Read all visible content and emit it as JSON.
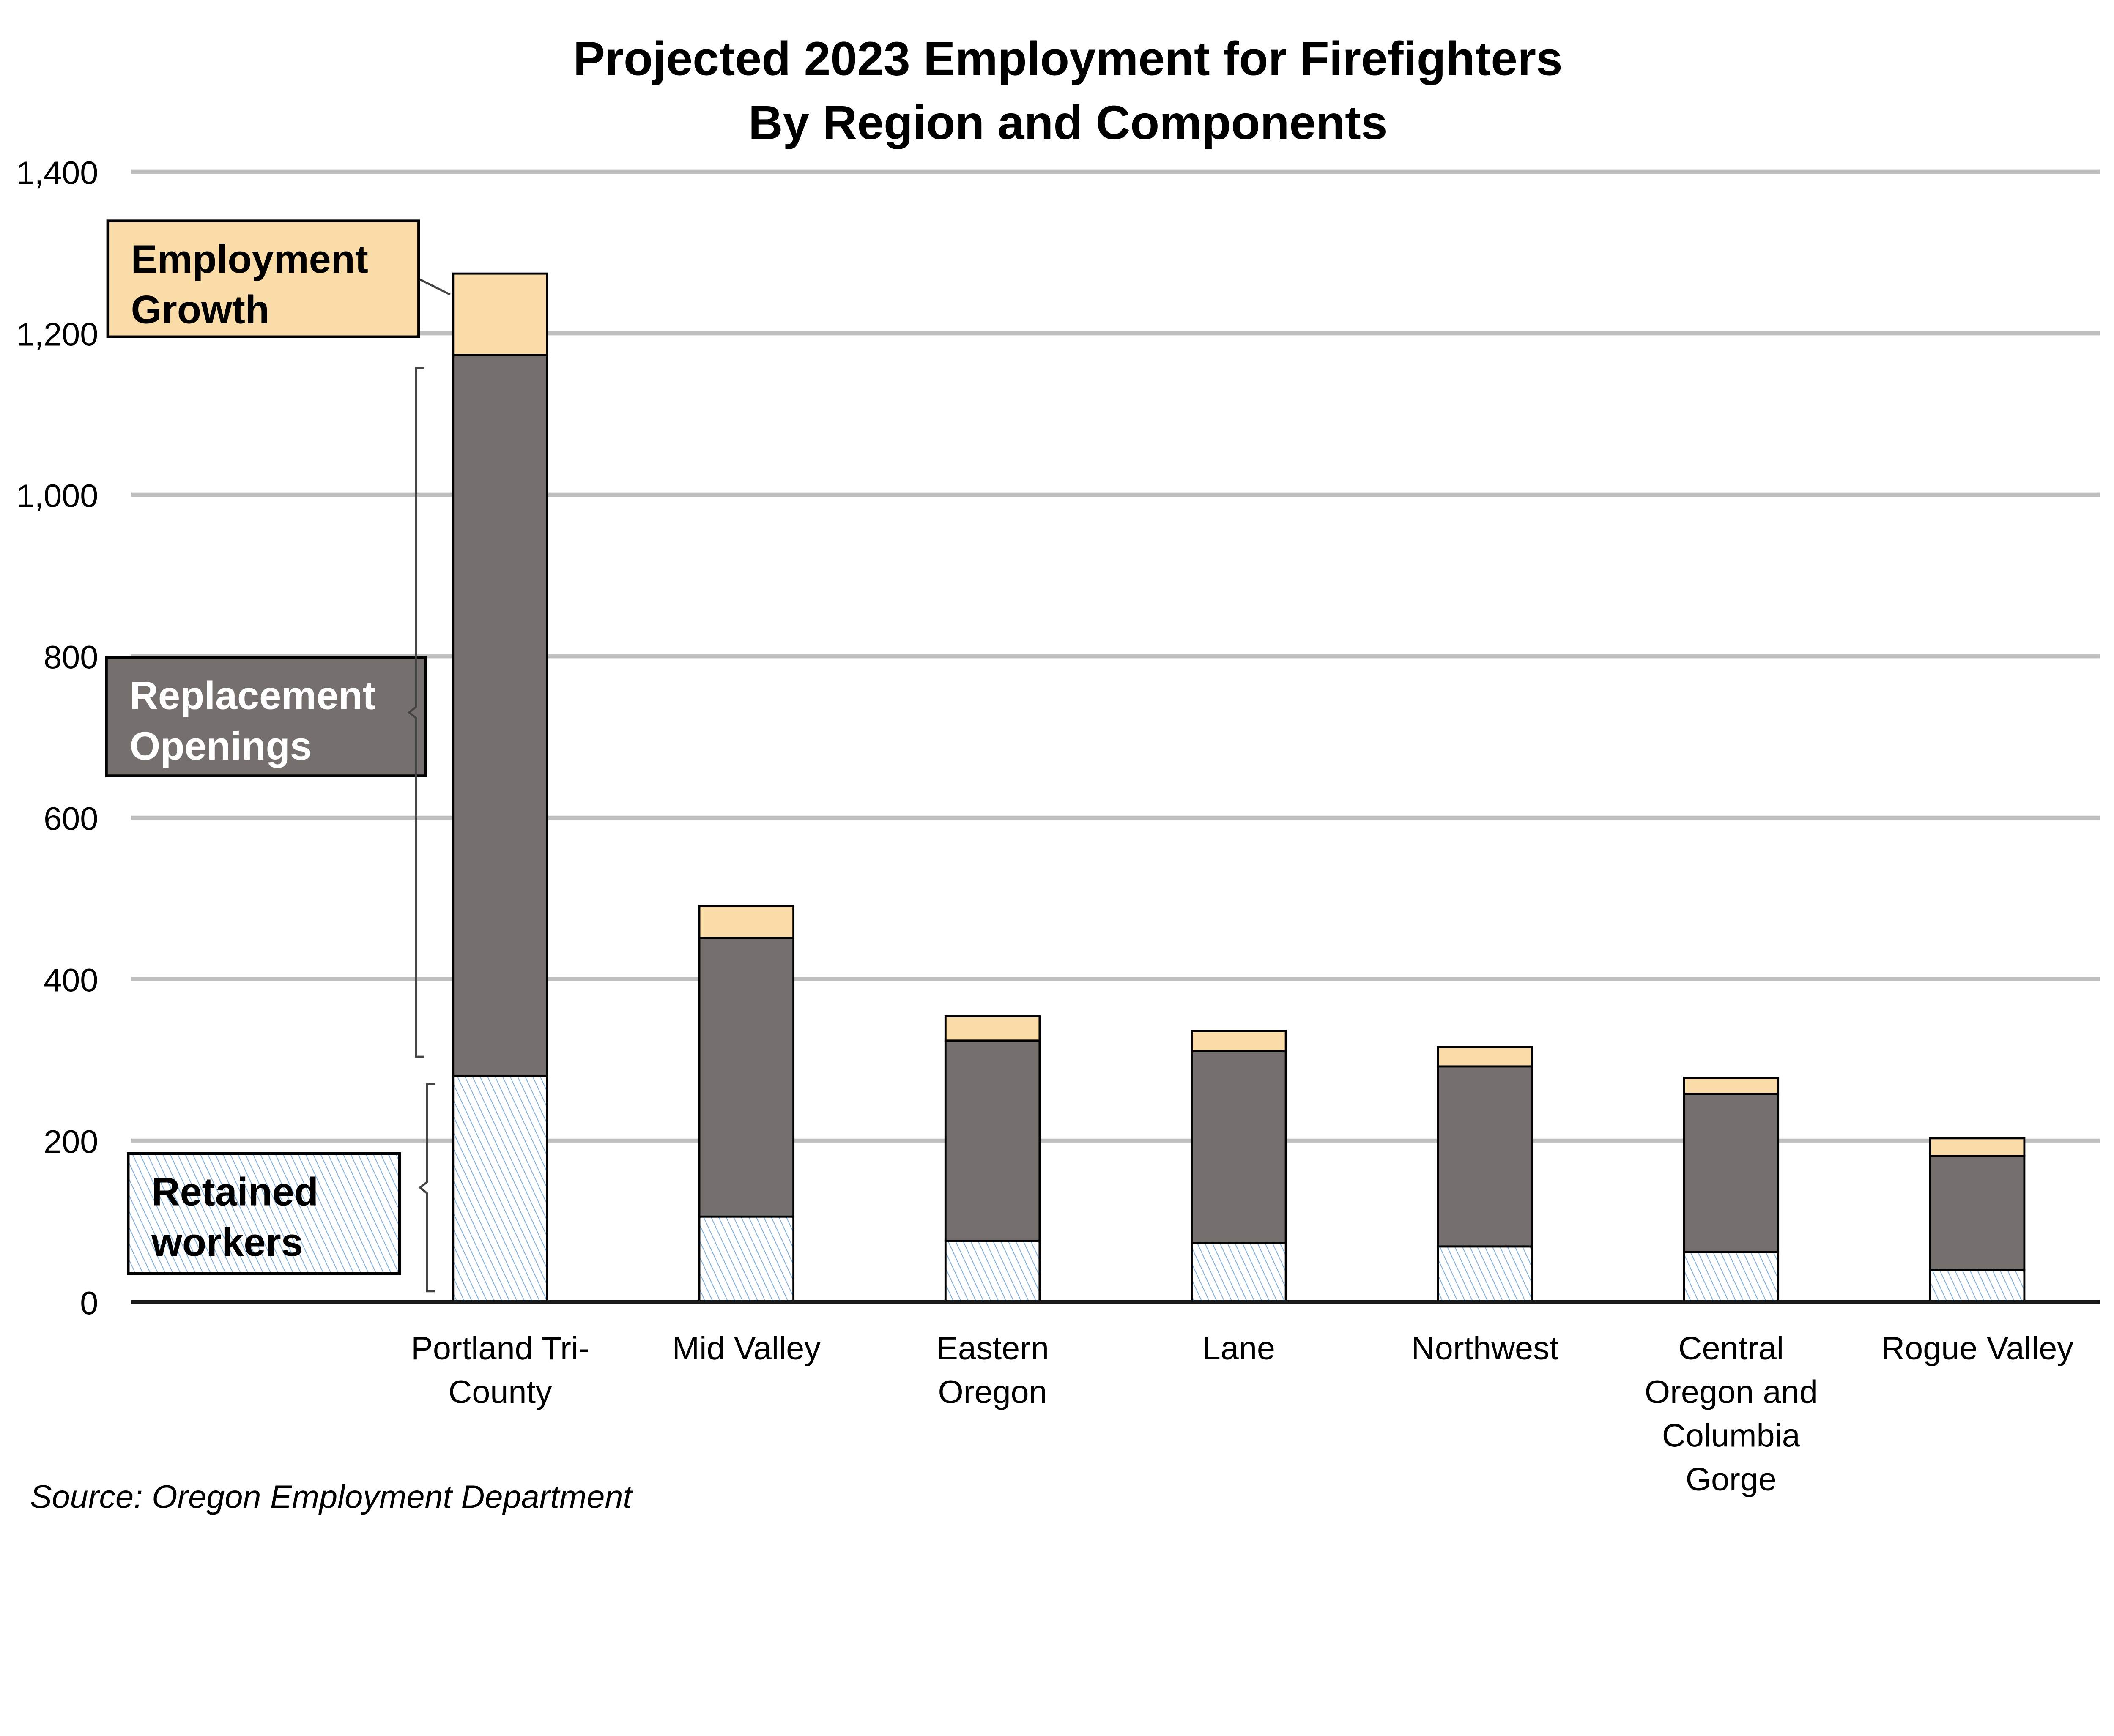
{
  "chart_data": {
    "type": "bar",
    "stacked": true,
    "title": "Projected 2023 Employment for Firefighters",
    "subtitle": "By Region and Components",
    "xlabel": "",
    "ylabel": "",
    "ylim": [
      0,
      1400
    ],
    "yticks": [
      "0",
      "200",
      "400",
      "600",
      "800",
      "1,000",
      "1,200",
      "1,400"
    ],
    "ytick_values": [
      0,
      200,
      400,
      600,
      800,
      1000,
      1200,
      1400
    ],
    "grid": true,
    "categories": [
      [
        "Portland Tri-",
        "County"
      ],
      [
        "Mid Valley"
      ],
      [
        "Eastern",
        "Oregon"
      ],
      [
        "Lane"
      ],
      [
        "Northwest"
      ],
      [
        "Central",
        "Oregon and",
        "Columbia",
        "Gorge"
      ],
      [
        "Rogue Valley"
      ]
    ],
    "series": [
      {
        "name": "Retained workers",
        "label_lines": [
          "Retained",
          "workers"
        ],
        "color": "#9dc3e6",
        "values": [
          280,
          106,
          76,
          73,
          69,
          62,
          40
        ]
      },
      {
        "name": "Replacement Openings",
        "label_lines": [
          "Replacement",
          "Openings"
        ],
        "color": "#75706e",
        "values": [
          893,
          345,
          248,
          238,
          223,
          196,
          141
        ]
      },
      {
        "name": "Employment Growth",
        "label_lines": [
          "Employment",
          "Growth"
        ],
        "color": "#fadca8",
        "values": [
          101,
          40,
          30,
          25,
          24,
          20,
          22
        ]
      }
    ],
    "legend_placement": "left annotations",
    "source": "Source: Oregon Employment Department"
  }
}
